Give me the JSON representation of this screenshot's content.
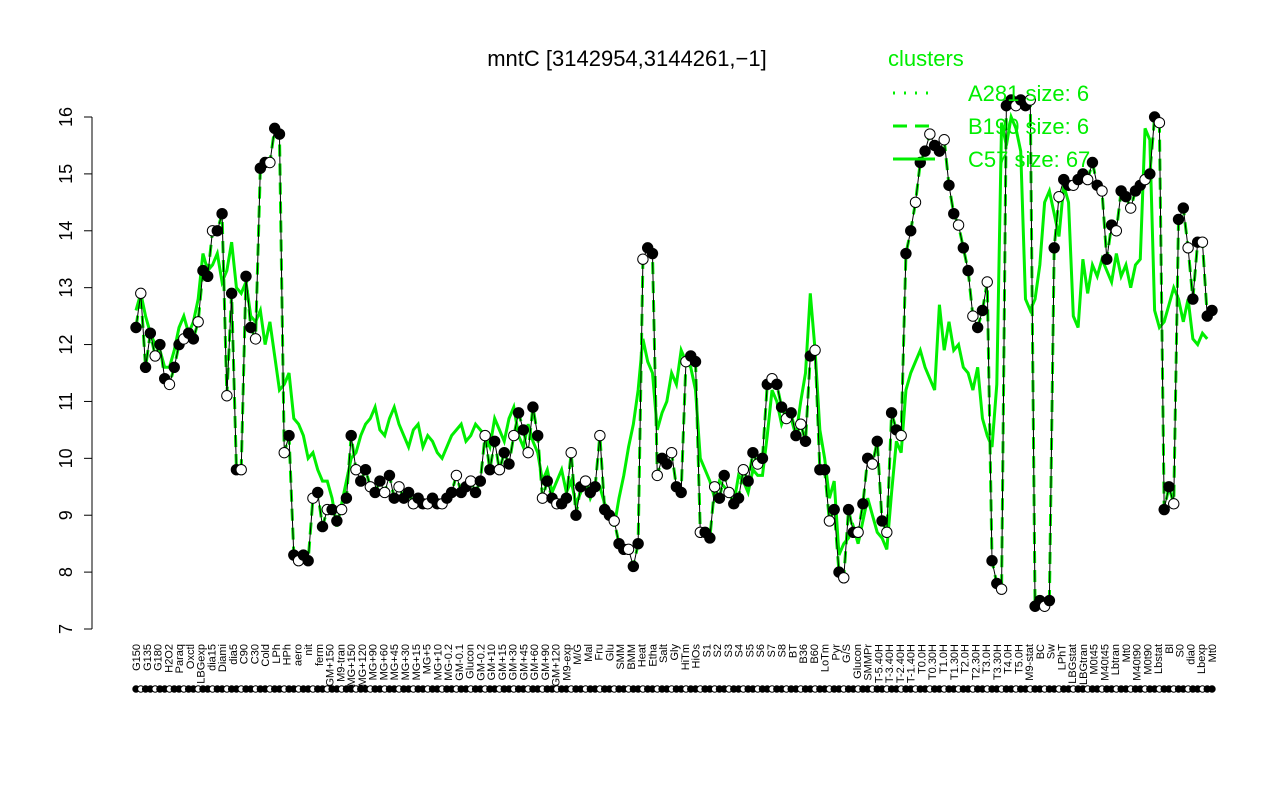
{
  "chart_data": {
    "type": "line",
    "title": "mntC [3142954,3144261,−1]",
    "xlabel": "",
    "ylabel": "",
    "ylim": [
      7,
      16
    ],
    "y_ticks": [
      7,
      8,
      9,
      10,
      11,
      12,
      13,
      14,
      15,
      16
    ],
    "grid": false,
    "legend": {
      "title": "clusters",
      "placement": "top-right",
      "entries": [
        {
          "label": "A281 size: 6",
          "style": "dotted"
        },
        {
          "label": "B190 size: 6",
          "style": "dashed"
        },
        {
          "label": "C57 size: 67",
          "style": "solid"
        }
      ]
    },
    "colors": {
      "line": "#00ee00",
      "profile": "#000000"
    },
    "x_tick_labels": [
      "G150",
      "G135",
      "G180",
      "H2O2",
      "Paraq",
      "Oxctl",
      "LBGexp",
      "dia15",
      "Diami",
      "dia5",
      "C90",
      "C30",
      "Cold",
      "LPh",
      "HPh",
      "aero",
      "nit",
      "ferm",
      "GM+150",
      "M9-tran",
      "MG+150",
      "MG+120",
      "MG+90",
      "MG+60",
      "MG+45",
      "MG+30",
      "MG+15",
      "MG+5",
      "MG+10",
      "MG-0.2",
      "GM-0.1",
      "Glucon",
      "GM-0.2",
      "GM+10",
      "GM+15",
      "GM+30",
      "GM+45",
      "GM+60",
      "GM+90",
      "GM+120",
      "M9-exp",
      "M/G",
      "Mal",
      "Fru",
      "Glu",
      "SMM",
      "BMM",
      "Heat",
      "Etha",
      "Salt",
      "Gly",
      "HiTm",
      "HiOs",
      "S1",
      "S2",
      "S3",
      "S4",
      "S5",
      "S6",
      "S7",
      "S8",
      "BT",
      "B36",
      "B60",
      "LoTm",
      "Pyr",
      "G/S",
      "Glucon",
      "SMMPr",
      "T-5.40H",
      "T-3.40H",
      "T-2.40H",
      "T-1.40H",
      "T0.0H",
      "T0.30H",
      "T1.0H",
      "T1.30H",
      "T2.0H",
      "T2.30H",
      "T3.0H",
      "T3.30H",
      "T4.0H",
      "T5.0H",
      "M9-stat",
      "BC",
      "Sw",
      "LPhT",
      "LBGstat",
      "LBGtran",
      "M0t45",
      "M40t45",
      "Lbtran",
      "Mt0",
      "M40t90",
      "M0t90",
      "Lbstat",
      "Bl",
      "S0",
      "dia0",
      "Lbexp",
      "Mt0"
    ],
    "series": [
      {
        "values": [
          12.3,
          12.9,
          11.6,
          12.2,
          11.8,
          12.0,
          11.4,
          11.3,
          11.6,
          12.0,
          12.1,
          12.2,
          12.1,
          12.4,
          13.3,
          13.2,
          14.0,
          14.0,
          14.3,
          11.1,
          12.9,
          9.8,
          9.8,
          13.2,
          12.3,
          12.1,
          15.1,
          15.2,
          15.2,
          15.8,
          15.7,
          10.1,
          10.4,
          8.3,
          8.2,
          8.3,
          8.2,
          9.3,
          9.4,
          8.8,
          9.1,
          9.1,
          8.9,
          9.1,
          9.3,
          10.4,
          9.8,
          9.6,
          9.8,
          9.5,
          9.4,
          9.6,
          9.4,
          9.7,
          9.3,
          9.5,
          9.3,
          9.4,
          9.2,
          9.3,
          9.2,
          9.2,
          9.3,
          9.2,
          9.2,
          9.3,
          9.4,
          9.7,
          9.4,
          9.5,
          9.6,
          9.4,
          9.6,
          10.4,
          9.8,
          10.3,
          9.8,
          10.1,
          9.9,
          10.4,
          10.8,
          10.5,
          10.1,
          10.9,
          10.4,
          9.3,
          9.6,
          9.3,
          9.2,
          9.2,
          9.3,
          10.1,
          9.0,
          9.5,
          9.6,
          9.4,
          9.5,
          10.4,
          9.1,
          9.0,
          8.9,
          8.5,
          8.4,
          8.4,
          8.1,
          8.5,
          13.5,
          13.7,
          13.6,
          9.7,
          10.0,
          9.9,
          10.1,
          9.5,
          9.4,
          11.7,
          11.8,
          11.7,
          8.7,
          8.7,
          8.6,
          9.5,
          9.3,
          9.7,
          9.4,
          9.2,
          9.3,
          9.8,
          9.6,
          10.1,
          9.9,
          10.0,
          11.3,
          11.4,
          11.3,
          10.9,
          10.7,
          10.8,
          10.4,
          10.6,
          10.3,
          11.8,
          11.9,
          9.8,
          9.8,
          8.9,
          9.1,
          8.0,
          7.9,
          9.1,
          8.7,
          8.7,
          9.2,
          10.0,
          9.9,
          10.3,
          8.9,
          8.7,
          10.8,
          10.5,
          10.4,
          13.6,
          14.0,
          14.5,
          15.2,
          15.4,
          15.7,
          15.5,
          15.4,
          15.6,
          14.8,
          14.3,
          14.1,
          13.7,
          13.3,
          12.5,
          12.3,
          12.6,
          13.1,
          8.2,
          7.8,
          7.7,
          16.2,
          16.3,
          16.2,
          16.3,
          16.2,
          16.3,
          7.4,
          7.5,
          7.4,
          7.5,
          13.7,
          14.6,
          14.9,
          14.8,
          14.8,
          14.9,
          15.0,
          14.9,
          15.2,
          14.8,
          14.7,
          13.5,
          14.1,
          14.0,
          14.7,
          14.6,
          14.4,
          14.7,
          14.8,
          14.9,
          15.0,
          16.0,
          15.9,
          9.1,
          9.5,
          9.2,
          14.2,
          14.4,
          13.7,
          12.8,
          13.8,
          13.8,
          12.5,
          12.6
        ]
      },
      {
        "name": "C57 size: 67",
        "values": [
          12.6,
          12.9,
          12.5,
          12.2,
          12.0,
          11.9,
          11.6,
          11.6,
          11.9,
          12.3,
          12.5,
          12.2,
          12.4,
          12.8,
          13.6,
          13.3,
          13.4,
          13.6,
          13.1,
          13.3,
          13.8,
          13.0,
          12.9,
          13.1,
          12.5,
          12.4,
          12.6,
          12.0,
          12.4,
          11.8,
          11.2,
          11.3,
          11.5,
          10.7,
          10.6,
          10.4,
          10.0,
          10.1,
          9.8,
          9.6,
          9.6,
          9.3,
          8.8,
          9.2,
          9.6,
          10.0,
          10.1,
          10.4,
          10.6,
          10.7,
          10.9,
          10.5,
          10.4,
          10.7,
          10.9,
          10.6,
          10.4,
          10.2,
          10.5,
          10.6,
          10.2,
          10.4,
          10.3,
          10.1,
          10.0,
          10.2,
          10.4,
          10.5,
          10.6,
          10.3,
          10.4,
          10.6,
          10.5,
          10.4,
          10.2,
          10.7,
          10.5,
          10.3,
          10.7,
          10.9,
          10.4,
          10.2,
          10.6,
          10.3,
          10.1,
          9.6,
          9.8,
          9.4,
          9.6,
          9.8,
          9.4,
          9.6,
          9.2,
          9.4,
          9.6,
          9.3,
          9.5,
          9.5,
          9.2,
          9.1,
          8.8,
          9.3,
          9.7,
          10.2,
          10.6,
          11.2,
          12.1,
          11.7,
          11.5,
          10.5,
          10.8,
          11.0,
          11.5,
          11.3,
          11.9,
          11.7,
          11.6,
          11.2,
          10.0,
          9.8,
          9.6,
          9.3,
          9.6,
          9.5,
          9.4,
          9.2,
          9.7,
          9.6,
          9.4,
          9.8,
          9.7,
          9.7,
          10.4,
          11.2,
          11.0,
          10.6,
          10.8,
          10.7,
          10.4,
          11.0,
          11.5,
          12.9,
          11.9,
          10.5,
          10.0,
          9.3,
          9.6,
          8.3,
          8.5,
          8.6,
          8.8,
          8.5,
          8.9,
          9.3,
          9.0,
          8.7,
          8.6,
          8.4,
          9.4,
          10.3,
          10.1,
          11.2,
          11.5,
          11.7,
          11.9,
          11.6,
          11.4,
          11.2,
          12.7,
          11.9,
          12.4,
          11.9,
          12.0,
          11.6,
          11.5,
          11.2,
          11.6,
          10.7,
          10.4,
          10.2,
          11.3,
          15.9,
          15.5,
          16.0,
          15.8,
          15.4,
          12.8,
          12.6,
          12.8,
          13.4,
          14.5,
          14.7,
          14.3,
          13.9,
          14.8,
          14.5,
          12.5,
          12.3,
          13.5,
          12.9,
          13.4,
          13.2,
          13.5,
          13.3,
          13.1,
          13.6,
          13.2,
          13.4,
          13.0,
          13.4,
          13.5,
          15.8,
          15.6,
          12.6,
          12.3,
          12.4,
          12.7,
          13.0,
          12.8,
          12.4,
          12.8,
          12.1,
          12.0,
          12.2,
          12.1
        ]
      },
      {
        "name": "B190 size: 6",
        "values": [
          12.3,
          12.9,
          11.6,
          12.2,
          11.8,
          12.0,
          11.4,
          11.3,
          11.6,
          12.0,
          12.1,
          12.2,
          12.1,
          12.4,
          13.3,
          13.2,
          14.0,
          14.0,
          14.3,
          11.1,
          12.9,
          9.8,
          9.8,
          13.2,
          12.3,
          12.1,
          15.1,
          15.2,
          15.2,
          15.8,
          15.7,
          10.1,
          10.4,
          8.3,
          8.2,
          8.3,
          8.2,
          9.3,
          9.4,
          8.8,
          9.1,
          9.1,
          8.9,
          9.1,
          9.3,
          10.4,
          9.8,
          9.6,
          9.8,
          9.5,
          9.4,
          9.6,
          9.4,
          9.7,
          9.3,
          9.5,
          9.3,
          9.4,
          9.2,
          9.3,
          9.2,
          9.2,
          9.3,
          9.2,
          9.2,
          9.3,
          9.4,
          9.7,
          9.4,
          9.5,
          9.6,
          9.4,
          9.6,
          10.4,
          9.8,
          10.3,
          9.8,
          10.1,
          9.9,
          10.4,
          10.8,
          10.5,
          10.1,
          10.9,
          10.4,
          9.3,
          9.6,
          9.3,
          9.2,
          9.2,
          9.3,
          10.1,
          9.0,
          9.5,
          9.6,
          9.4,
          9.5,
          10.4,
          9.1,
          9.0,
          8.9,
          8.5,
          8.4,
          8.4,
          8.1,
          8.5,
          13.5,
          13.7,
          13.6,
          9.7,
          10.0,
          9.9,
          10.1,
          9.5,
          9.4,
          11.7,
          11.8,
          11.7,
          8.7,
          8.7,
          8.6,
          9.5,
          9.3,
          9.7,
          9.4,
          9.2,
          9.3,
          9.8,
          9.6,
          10.1,
          9.9,
          10.0,
          11.3,
          11.4,
          11.3,
          10.9,
          10.7,
          10.8,
          10.4,
          10.6,
          10.3,
          11.8,
          11.9,
          9.8,
          9.8,
          8.9,
          9.1,
          8.0,
          7.9,
          9.1,
          8.7,
          8.7,
          9.2,
          10.0,
          9.9,
          10.3,
          8.9,
          8.7,
          10.8,
          10.5,
          10.4,
          13.6,
          14.0,
          14.5,
          15.2,
          15.4,
          15.7,
          15.5,
          15.4,
          15.6,
          14.8,
          14.3,
          14.1,
          13.7,
          13.3,
          12.5,
          12.3,
          12.6,
          13.1,
          8.2,
          7.8,
          7.7,
          16.2,
          16.3,
          16.2,
          16.3,
          16.2,
          16.3,
          7.4,
          7.5,
          7.4,
          7.5,
          13.7,
          14.6,
          14.9,
          14.8,
          14.8,
          14.9,
          15.0,
          14.9,
          15.2,
          14.8,
          14.7,
          13.5,
          14.1,
          14.0,
          14.7,
          14.6,
          14.4,
          14.7,
          14.8,
          14.9,
          15.0,
          16.0,
          15.9,
          9.1,
          9.5,
          9.2,
          14.2,
          14.4,
          13.7,
          12.8,
          13.8,
          13.8,
          12.5,
          12.6
        ]
      }
    ]
  }
}
